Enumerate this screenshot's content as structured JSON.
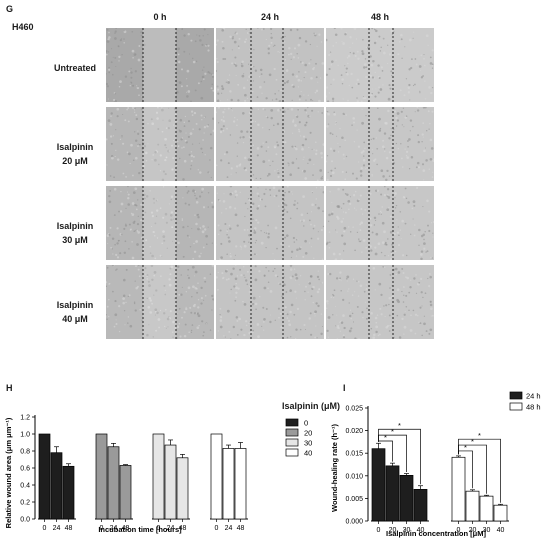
{
  "panel_g": {
    "letter": "G",
    "cell_line": "H460",
    "timepoints": [
      "0 h",
      "24 h",
      "48 h"
    ],
    "treatments": [
      {
        "line1": "Untreated",
        "line2": ""
      },
      {
        "line1": "Isalpinin",
        "line2": "20 μM"
      },
      {
        "line1": "Isalpinin",
        "line2": "30 μM"
      },
      {
        "line1": "Isalpinin",
        "line2": "40 μM"
      }
    ]
  },
  "panel_h": {
    "letter": "H",
    "legend_title": "Isalpinin (μM)",
    "legend": [
      {
        "label": "0",
        "color": "#1e1e1e"
      },
      {
        "label": "20",
        "color": "#9a9a9a"
      },
      {
        "label": "30",
        "color": "#e6e6e6"
      },
      {
        "label": "40",
        "color": "#ffffff"
      }
    ],
    "ylabel": "Relative wound area (μm μm⁻¹)",
    "xlabel": "Incubation time [hours]"
  },
  "panel_i": {
    "letter": "I",
    "legend": [
      {
        "label": "24 h",
        "color": "#1e1e1e"
      },
      {
        "label": "48 h",
        "color": "#ffffff"
      }
    ],
    "ylabel": "Wound-healing rate (h⁻¹)",
    "xlabel": "Isalpinin concentration [μM]"
  },
  "chart_data": [
    {
      "type": "bar",
      "panel": "H",
      "ylabel": "Relative wound area (μm μm⁻¹)",
      "xlabel": "Incubation time [hours]",
      "ylim": [
        0,
        1.2
      ],
      "yticks": [
        0.0,
        0.2,
        0.4,
        0.6,
        0.8,
        1.0,
        1.2
      ],
      "categories": [
        "0",
        "24",
        "48"
      ],
      "series": [
        {
          "name": "0",
          "color": "#1e1e1e",
          "values": [
            1.0,
            0.78,
            0.62
          ],
          "errors": [
            0,
            0.07,
            0.03
          ]
        },
        {
          "name": "20",
          "color": "#9a9a9a",
          "values": [
            1.0,
            0.85,
            0.63
          ],
          "errors": [
            0,
            0.04,
            0.01
          ]
        },
        {
          "name": "30",
          "color": "#e6e6e6",
          "values": [
            1.0,
            0.87,
            0.72
          ],
          "errors": [
            0,
            0.06,
            0.04
          ]
        },
        {
          "name": "40",
          "color": "#ffffff",
          "values": [
            1.0,
            0.83,
            0.83
          ],
          "errors": [
            0,
            0.04,
            0.07
          ]
        }
      ]
    },
    {
      "type": "bar",
      "panel": "I",
      "ylabel": "Wound-healing rate (h⁻¹)",
      "xlabel": "Isalpinin concentration [μM]",
      "ylim": [
        0,
        0.025
      ],
      "yticks": [
        0.0,
        0.005,
        0.01,
        0.015,
        0.02,
        0.025
      ],
      "ytick_labels": [
        "0.000",
        "0.005",
        "0.010",
        "0.015",
        "0.020",
        "0.025"
      ],
      "categories": [
        "0",
        "20",
        "30",
        "40"
      ],
      "series": [
        {
          "name": "24 h",
          "color": "#1e1e1e",
          "values": [
            0.016,
            0.0122,
            0.0101,
            0.007
          ],
          "errors": [
            0.0012,
            0.0006,
            0.0004,
            0.0008
          ]
        },
        {
          "name": "48 h",
          "color": "#ffffff",
          "values": [
            0.0141,
            0.0066,
            0.0055,
            0.0035
          ],
          "errors": [
            0.0003,
            0.0003,
            0.0002,
            0.0002
          ]
        }
      ],
      "significance_marker": "*"
    }
  ]
}
